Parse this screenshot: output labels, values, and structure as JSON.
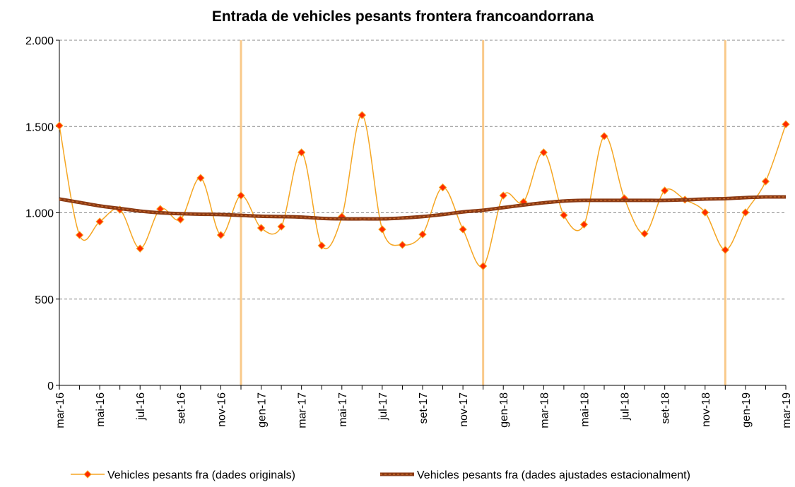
{
  "chart_data": {
    "type": "line",
    "title": "Entrada de vehicles pesants frontera francoandorrana",
    "categories": [
      "mar-16",
      null,
      "mai-16",
      null,
      "jul-16",
      null,
      "set-16",
      null,
      "nov-16",
      null,
      "gen-17",
      null,
      "mar-17",
      null,
      "mai-17",
      null,
      "jul-17",
      null,
      "set-17",
      null,
      "nov-17",
      null,
      "gen-18",
      null,
      "mar-18",
      null,
      "mai-18",
      null,
      "jul-18",
      null,
      "set-18",
      null,
      "nov-18",
      null,
      "gen-19",
      null,
      "mar-19"
    ],
    "series": [
      {
        "name": "Vehicles pesants fra (dades originals)",
        "color": "#f5a623",
        "marker_color": "#ff2a00",
        "values": [
          1505,
          871,
          949,
          1018,
          793,
          1022,
          961,
          1202,
          871,
          1100,
          912,
          920,
          1350,
          810,
          978,
          1566,
          904,
          814,
          875,
          1147,
          904,
          691,
          1100,
          1063,
          1350,
          986,
          932,
          1444,
          1084,
          879,
          1129,
          1076,
          1002,
          785,
          1002,
          1182,
          1513
        ]
      },
      {
        "name": "Vehicles pesants fra (dades ajustades estacionalment)",
        "color": "#8b3a14",
        "values": [
          1080,
          1060,
          1040,
          1025,
          1010,
          1000,
          995,
          992,
          990,
          985,
          980,
          978,
          975,
          968,
          965,
          965,
          965,
          970,
          978,
          990,
          1005,
          1015,
          1030,
          1045,
          1058,
          1068,
          1072,
          1072,
          1072,
          1072,
          1072,
          1075,
          1080,
          1082,
          1088,
          1092,
          1092
        ]
      }
    ],
    "ylim": [
      0,
      2000
    ],
    "yticks": [
      0,
      500,
      {
        "value": 1000,
        "label": "1.000"
      },
      {
        "value": 1500,
        "label": "1.500"
      },
      {
        "value": 2000,
        "label": "2.000"
      }
    ],
    "grid": true,
    "legend": "bottom"
  }
}
